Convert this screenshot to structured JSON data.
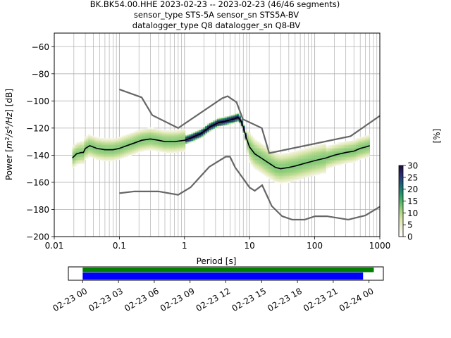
{
  "header": {
    "line1": "BK.BK54.00.HHE   2023-02-23 -- 2023-02-23  (46/46 segments)",
    "line2": "sensor_type STS-5A sensor_sn STS5A-BV",
    "line3": "datalogger_type Q8 datalogger_sn Q8-BV"
  },
  "axes": {
    "xlabel": "Period [s]",
    "ylabel": "Power [m²/s⁴/Hz] [dB]",
    "ylabel_parts": {
      "pre": "Power [",
      "m": "m",
      "exp2": "2",
      "s": "/s",
      "exp4": "4",
      "hz": "/Hz",
      "post": "] [dB]"
    },
    "colorbar_label": "[%]"
  },
  "chart_data": [
    {
      "type": "heatmap",
      "name": "ppsd",
      "xscale": "log",
      "xlim": [
        0.01,
        1000
      ],
      "ylim": [
        -200,
        -50
      ],
      "xticks": [
        0.01,
        0.1,
        1,
        10,
        100,
        1000
      ],
      "xtick_labels": [
        "0.01",
        "0.1",
        "1",
        "10",
        "100",
        "1000"
      ],
      "yticks": [
        -60,
        -80,
        -100,
        -120,
        -140,
        -160,
        -180,
        -200
      ],
      "ytick_labels": [
        "−60",
        "−80",
        "−100",
        "−120",
        "−140",
        "−160",
        "−180",
        "−200"
      ],
      "grid": true,
      "mode_line": {
        "period": [
          0.019,
          0.022,
          0.026,
          0.028,
          0.03,
          0.035,
          0.045,
          0.06,
          0.08,
          0.1,
          0.13,
          0.17,
          0.22,
          0.3,
          0.4,
          0.5,
          0.7,
          1.0,
          1.3,
          1.8,
          2.5,
          3.3,
          4.2,
          5,
          6,
          6.5,
          7,
          7.6,
          8.2,
          9,
          10,
          12,
          15,
          20,
          25,
          30,
          40,
          50,
          70,
          100,
          150,
          200,
          300,
          400,
          500,
          600,
          700
        ],
        "db": [
          -142,
          -139,
          -138,
          -138,
          -135,
          -133,
          -135,
          -136,
          -136,
          -135,
          -133,
          -131,
          -129,
          -128,
          -129,
          -130,
          -130,
          -129,
          -127,
          -124,
          -119,
          -116,
          -115,
          -114,
          -113,
          -112,
          -113,
          -116,
          -121,
          -128,
          -134,
          -139,
          -142,
          -146,
          -149,
          -150,
          -149,
          -148,
          -146,
          -144,
          -142,
          -140,
          -138,
          -137,
          -135,
          -134,
          -133
        ]
      },
      "nlnm": {
        "period": [
          0.1,
          0.17,
          0.4,
          0.8,
          1.24,
          2.4,
          4.3,
          5,
          6,
          10,
          12,
          15.6,
          21.9,
          31.6,
          45,
          70,
          101,
          154,
          328,
          600,
          1000
        ],
        "db": [
          -168,
          -166.7,
          -166.7,
          -169.2,
          -163.7,
          -148.6,
          -141.1,
          -141.1,
          -149,
          -163.8,
          -166.2,
          -162.1,
          -177.5,
          -185,
          -187.5,
          -187.5,
          -185,
          -185,
          -187.5,
          -184.4,
          -178
        ]
      },
      "nhnm": {
        "period": [
          0.1,
          0.22,
          0.32,
          0.8,
          3.8,
          4.6,
          6.3,
          7.9,
          15.4,
          20,
          354.8,
          1000
        ],
        "db": [
          -91.5,
          -97.4,
          -110.5,
          -120,
          -98,
          -96.5,
          -101,
          -113.5,
          -120,
          -138.5,
          -126,
          -111
        ]
      }
    },
    {
      "type": "colorbar",
      "name": "probability",
      "range": [
        0,
        30
      ],
      "ticks": [
        0,
        5,
        10,
        15,
        20,
        25,
        30
      ],
      "tick_labels": [
        "0",
        "5",
        "10",
        "15",
        "20",
        "25",
        "30"
      ]
    },
    {
      "type": "timeline",
      "name": "data-availability",
      "tick_labels": [
        "02-23 00",
        "02-23 03",
        "02-23 06",
        "02-23 09",
        "02-23 12",
        "02-23 15",
        "02-23 18",
        "02-23 21",
        "02-24 00"
      ],
      "tick_hours": [
        0,
        3,
        6,
        9,
        12,
        15,
        18,
        21,
        24
      ],
      "xlim_hours": [
        -1.2,
        25.2
      ],
      "bars": [
        {
          "name": "available-data",
          "start_hour": 0,
          "end_hour": 24.4,
          "color": "#008000"
        },
        {
          "name": "used-segments",
          "start_hour": 0,
          "end_hour": 23.5,
          "color": "#0000ff"
        }
      ]
    }
  ],
  "colors": {
    "mode": "#000000",
    "noise_model": "#666666",
    "grid": "#b0b0b0",
    "cmap": [
      "#ffffff",
      "#f0f0d8",
      "#d8e6a8",
      "#9fd27f",
      "#4cb568",
      "#1e8e6e",
      "#1e5a7a",
      "#2b2a6e",
      "#1a0f38"
    ]
  }
}
